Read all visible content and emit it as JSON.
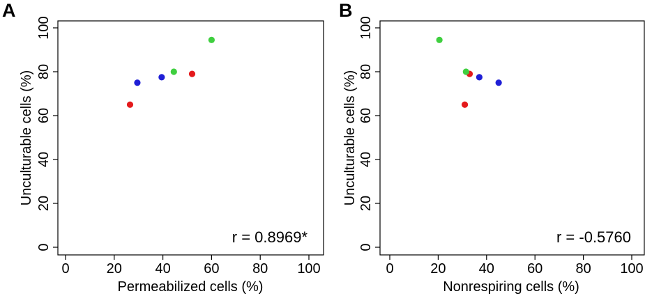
{
  "chart_data": [
    {
      "type": "scatter",
      "panel": "A",
      "xlabel": "Permeabilized cells (%)",
      "ylabel": "Unculturable cells (%)",
      "xlim": [
        0,
        100
      ],
      "ylim": [
        0,
        100
      ],
      "xticks": [
        0,
        20,
        40,
        60,
        80,
        100
      ],
      "yticks": [
        0,
        20,
        40,
        60,
        80,
        100
      ],
      "annotation": "r = 0.8969*",
      "annotation_position": "bottom-right",
      "grid": false,
      "series": [
        {
          "name": "red",
          "color": "#e41a1c",
          "points": [
            {
              "x": 26.5,
              "y": 65
            },
            {
              "x": 52,
              "y": 79
            }
          ]
        },
        {
          "name": "blue",
          "color": "#1f1fd6",
          "points": [
            {
              "x": 29.5,
              "y": 75
            },
            {
              "x": 39.5,
              "y": 77.5
            }
          ]
        },
        {
          "name": "green",
          "color": "#3fcf3f",
          "points": [
            {
              "x": 44.5,
              "y": 80
            },
            {
              "x": 60,
              "y": 94.5
            }
          ]
        }
      ]
    },
    {
      "type": "scatter",
      "panel": "B",
      "xlabel": "Nonrespiring cells (%)",
      "ylabel": "Unculturable cells (%)",
      "xlim": [
        0,
        100
      ],
      "ylim": [
        0,
        100
      ],
      "xticks": [
        0,
        20,
        40,
        60,
        80,
        100
      ],
      "yticks": [
        0,
        20,
        40,
        60,
        80,
        100
      ],
      "annotation": "r = -0.5760",
      "annotation_position": "bottom-right",
      "grid": false,
      "series": [
        {
          "name": "red",
          "color": "#e41a1c",
          "points": [
            {
              "x": 31,
              "y": 65
            },
            {
              "x": 33,
              "y": 79
            }
          ]
        },
        {
          "name": "blue",
          "color": "#1f1fd6",
          "points": [
            {
              "x": 45,
              "y": 75
            },
            {
              "x": 37,
              "y": 77.5
            }
          ]
        },
        {
          "name": "green",
          "color": "#3fcf3f",
          "points": [
            {
              "x": 31.5,
              "y": 80
            },
            {
              "x": 20.5,
              "y": 94.5
            }
          ]
        }
      ]
    }
  ]
}
